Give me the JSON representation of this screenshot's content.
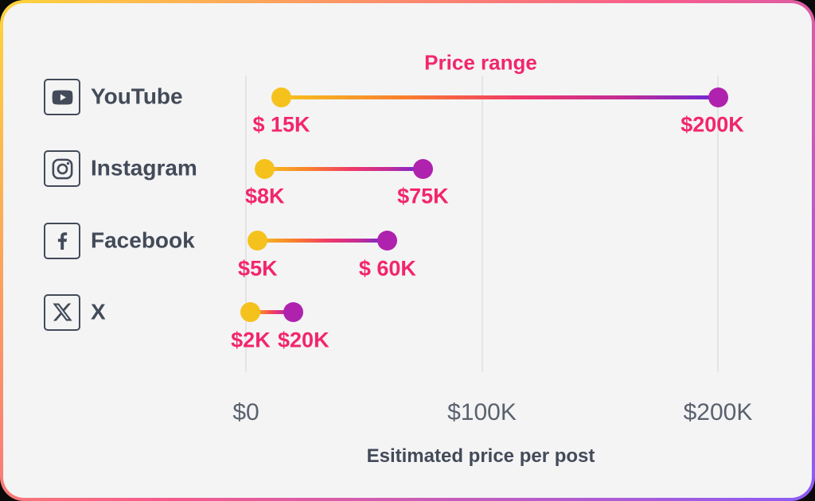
{
  "colors": {
    "accent_pink": "#F2266C",
    "dot_min_yellow": "#F5C21D",
    "dot_max_magenta": "#AF22AD",
    "category_text": "#434B59",
    "axis_text": "#5A616E",
    "gridline": "#E4E4E7",
    "card_background": "#F4F4F5",
    "border_gradient": [
      "#FFD43B",
      "#F75C8B",
      "#8B5CF6"
    ]
  },
  "chart_data": {
    "type": "dumbbell-range",
    "title": "Price range",
    "xlabel": "Esitimated price per post",
    "x_unit": "USD thousands",
    "xlim": [
      0,
      200
    ],
    "grid": "vertical-only",
    "x_ticks": [
      {
        "label": "$0",
        "value": 0
      },
      {
        "label": "$100K",
        "value": 100
      },
      {
        "label": "$200K",
        "value": 200
      }
    ],
    "series": [
      {
        "platform": "YouTube",
        "icon": "youtube-icon",
        "min": 15,
        "max": 200,
        "min_label": "$ 15K",
        "max_label": "$200K"
      },
      {
        "platform": "Instagram",
        "icon": "instagram-icon",
        "min": 8,
        "max": 75,
        "min_label": "$8K",
        "max_label": "$75K"
      },
      {
        "platform": "Facebook",
        "icon": "facebook-icon",
        "min": 5,
        "max": 60,
        "min_label": "$5K",
        "max_label": "$ 60K"
      },
      {
        "platform": "X",
        "icon": "x-icon",
        "min": 2,
        "max": 20,
        "min_label": "$2K",
        "max_label": "$20K"
      }
    ]
  }
}
